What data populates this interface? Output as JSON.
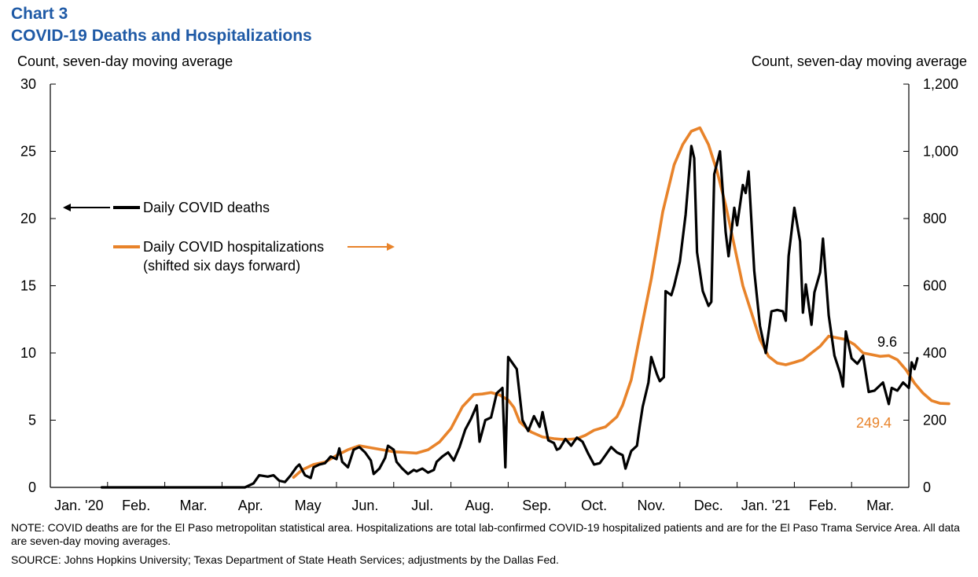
{
  "header": {
    "chart_number": "Chart 3",
    "title": "COVID-19 Deaths and Hospitalizations",
    "left_axis_label": "Count, seven-day moving average",
    "right_axis_label": "Count, seven-day moving average"
  },
  "footer": {
    "note": "NOTE:  COVID deaths are for the El Paso metropolitan  statistical area. Hospitalizations  are total lab-confirmed COVID-19 hospitalized patients and are for the El Paso Trama Service Area. All data are seven-day moving averages.",
    "source": "SOURCE:  Johns Hopkins University;  Texas  Department  of State Heath Services;  adjustments  by the Dallas Fed."
  },
  "colors": {
    "deaths": "#000000",
    "hospitalizations": "#e8832a"
  },
  "chart_data": {
    "type": "line",
    "x_ticks": [
      "Jan. '20",
      "Feb.",
      "Mar.",
      "Apr.",
      "May",
      "Jun.",
      "Jul.",
      "Aug.",
      "Sep.",
      "Oct.",
      "Nov.",
      "Dec.",
      "Jan. '21",
      "Feb.",
      "Mar."
    ],
    "y_left": {
      "ticks": [
        "0",
        "5",
        "10",
        "15",
        "20",
        "25",
        "30"
      ],
      "range": [
        0,
        30
      ]
    },
    "y_right": {
      "ticks": [
        "0",
        "200",
        "400",
        "600",
        "800",
        "1,000",
        "1,200"
      ],
      "range": [
        0,
        1200
      ]
    },
    "legend": {
      "deaths_label": "Daily COVID deaths",
      "hosp_label_line1": "Daily COVID hospitalizations",
      "hosp_label_line2": "(shifted six days forward)"
    },
    "annotations": {
      "deaths_last": "9.6",
      "hosp_last": "249.4"
    },
    "series": [
      {
        "name": "Daily COVID deaths",
        "axis": "left",
        "points": [
          [
            0.9,
            0
          ],
          [
            1.2,
            0
          ],
          [
            2,
            0
          ],
          [
            3,
            0
          ],
          [
            3.4,
            0
          ],
          [
            3.55,
            0.3
          ],
          [
            3.65,
            0.9
          ],
          [
            3.8,
            0.8
          ],
          [
            3.9,
            0.9
          ],
          [
            4.0,
            0.5
          ],
          [
            4.1,
            0.4
          ],
          [
            4.2,
            0.9
          ],
          [
            4.3,
            1.5
          ],
          [
            4.35,
            1.7
          ],
          [
            4.45,
            0.9
          ],
          [
            4.55,
            0.7
          ],
          [
            4.6,
            1.5
          ],
          [
            4.7,
            1.7
          ],
          [
            4.8,
            1.8
          ],
          [
            4.9,
            2.3
          ],
          [
            5.0,
            2.1
          ],
          [
            5.05,
            2.9
          ],
          [
            5.1,
            1.9
          ],
          [
            5.2,
            1.5
          ],
          [
            5.3,
            2.8
          ],
          [
            5.4,
            3.0
          ],
          [
            5.5,
            2.6
          ],
          [
            5.6,
            2.0
          ],
          [
            5.65,
            1.0
          ],
          [
            5.75,
            1.4
          ],
          [
            5.85,
            2.2
          ],
          [
            5.9,
            3.1
          ],
          [
            6.0,
            2.8
          ],
          [
            6.05,
            1.9
          ],
          [
            6.15,
            1.4
          ],
          [
            6.25,
            1.0
          ],
          [
            6.35,
            1.3
          ],
          [
            6.4,
            1.2
          ],
          [
            6.5,
            1.4
          ],
          [
            6.6,
            1.1
          ],
          [
            6.7,
            1.3
          ],
          [
            6.75,
            1.9
          ],
          [
            6.85,
            2.3
          ],
          [
            6.95,
            2.6
          ],
          [
            7.05,
            2.0
          ],
          [
            7.15,
            3.0
          ],
          [
            7.25,
            4.3
          ],
          [
            7.35,
            5.1
          ],
          [
            7.45,
            6.1
          ],
          [
            7.5,
            3.4
          ],
          [
            7.6,
            5.0
          ],
          [
            7.7,
            5.2
          ],
          [
            7.8,
            7.0
          ],
          [
            7.9,
            7.4
          ],
          [
            7.95,
            1.5
          ],
          [
            8.0,
            9.7
          ],
          [
            8.1,
            9.1
          ],
          [
            8.15,
            8.8
          ],
          [
            8.25,
            5.0
          ],
          [
            8.35,
            4.2
          ],
          [
            8.45,
            5.3
          ],
          [
            8.55,
            4.5
          ],
          [
            8.6,
            5.6
          ],
          [
            8.7,
            3.5
          ],
          [
            8.8,
            3.3
          ],
          [
            8.85,
            2.8
          ],
          [
            8.9,
            2.9
          ],
          [
            9.0,
            3.6
          ],
          [
            9.1,
            3.1
          ],
          [
            9.2,
            3.7
          ],
          [
            9.3,
            3.4
          ],
          [
            9.4,
            2.5
          ],
          [
            9.5,
            1.7
          ],
          [
            9.6,
            1.8
          ],
          [
            9.7,
            2.4
          ],
          [
            9.8,
            3.0
          ],
          [
            9.9,
            2.6
          ],
          [
            10.0,
            2.4
          ],
          [
            10.05,
            1.4
          ],
          [
            10.15,
            2.7
          ],
          [
            10.25,
            3.1
          ],
          [
            10.3,
            4.6
          ],
          [
            10.35,
            6.0
          ],
          [
            10.45,
            7.8
          ],
          [
            10.5,
            9.7
          ],
          [
            10.6,
            8.4
          ],
          [
            10.65,
            7.9
          ],
          [
            10.72,
            8.2
          ],
          [
            10.75,
            14.6
          ],
          [
            10.85,
            14.3
          ],
          [
            10.9,
            15.0
          ],
          [
            11.0,
            16.8
          ],
          [
            11.1,
            20.3
          ],
          [
            11.2,
            25.4
          ],
          [
            11.25,
            24.5
          ],
          [
            11.3,
            17.5
          ],
          [
            11.4,
            14.6
          ],
          [
            11.5,
            13.5
          ],
          [
            11.55,
            13.8
          ],
          [
            11.6,
            23.3
          ],
          [
            11.7,
            25.0
          ],
          [
            11.8,
            19.0
          ],
          [
            11.85,
            17.2
          ],
          [
            11.95,
            20.8
          ],
          [
            12.0,
            19.5
          ],
          [
            12.1,
            22.5
          ],
          [
            12.15,
            21.9
          ],
          [
            12.2,
            23.5
          ],
          [
            12.3,
            16.1
          ],
          [
            12.4,
            12.0
          ],
          [
            12.5,
            10.0
          ],
          [
            12.6,
            13.1
          ],
          [
            12.7,
            13.2
          ],
          [
            12.8,
            13.1
          ],
          [
            12.85,
            12.4
          ],
          [
            12.9,
            17.2
          ],
          [
            13.0,
            20.8
          ],
          [
            13.1,
            18.3
          ],
          [
            13.15,
            13.0
          ],
          [
            13.2,
            15.1
          ],
          [
            13.3,
            12.1
          ],
          [
            13.35,
            14.5
          ],
          [
            13.45,
            16.0
          ],
          [
            13.5,
            18.5
          ],
          [
            13.6,
            12.8
          ],
          [
            13.7,
            9.8
          ],
          [
            13.8,
            8.5
          ],
          [
            13.85,
            7.5
          ],
          [
            13.9,
            11.6
          ],
          [
            14.0,
            9.6
          ],
          [
            14.1,
            9.2
          ],
          [
            14.2,
            9.8
          ],
          [
            14.3,
            7.1
          ],
          [
            14.4,
            7.2
          ],
          [
            14.5,
            7.6
          ],
          [
            14.55,
            7.8
          ],
          [
            14.65,
            6.2
          ],
          [
            14.7,
            7.4
          ],
          [
            14.8,
            7.2
          ],
          [
            14.9,
            7.8
          ],
          [
            15.0,
            7.4
          ],
          [
            15.05,
            9.3
          ],
          [
            15.1,
            8.8
          ],
          [
            15.15,
            9.6
          ]
        ]
      },
      {
        "name": "Daily COVID hospitalizations (shifted six days forward)",
        "axis": "right",
        "points": [
          [
            4.25,
            30
          ],
          [
            4.4,
            52
          ],
          [
            4.6,
            68
          ],
          [
            4.8,
            75
          ],
          [
            5.0,
            95
          ],
          [
            5.2,
            112
          ],
          [
            5.4,
            124
          ],
          [
            5.6,
            118
          ],
          [
            5.8,
            112
          ],
          [
            6.0,
            106
          ],
          [
            6.2,
            104
          ],
          [
            6.4,
            102
          ],
          [
            6.6,
            112
          ],
          [
            6.8,
            135
          ],
          [
            7.0,
            175
          ],
          [
            7.2,
            240
          ],
          [
            7.4,
            276
          ],
          [
            7.55,
            278
          ],
          [
            7.7,
            282
          ],
          [
            7.85,
            275
          ],
          [
            8.0,
            260
          ],
          [
            8.1,
            238
          ],
          [
            8.2,
            195
          ],
          [
            8.4,
            165
          ],
          [
            8.6,
            150
          ],
          [
            8.8,
            145
          ],
          [
            9.0,
            142
          ],
          [
            9.2,
            145
          ],
          [
            9.35,
            155
          ],
          [
            9.5,
            170
          ],
          [
            9.7,
            180
          ],
          [
            9.9,
            210
          ],
          [
            10.0,
            245
          ],
          [
            10.15,
            320
          ],
          [
            10.3,
            450
          ],
          [
            10.5,
            620
          ],
          [
            10.7,
            820
          ],
          [
            10.9,
            960
          ],
          [
            11.05,
            1020
          ],
          [
            11.2,
            1060
          ],
          [
            11.35,
            1070
          ],
          [
            11.5,
            1020
          ],
          [
            11.65,
            940
          ],
          [
            11.8,
            840
          ],
          [
            11.95,
            720
          ],
          [
            12.1,
            600
          ],
          [
            12.25,
            520
          ],
          [
            12.4,
            440
          ],
          [
            12.55,
            390
          ],
          [
            12.7,
            370
          ],
          [
            12.85,
            365
          ],
          [
            13.0,
            372
          ],
          [
            13.15,
            380
          ],
          [
            13.3,
            400
          ],
          [
            13.45,
            420
          ],
          [
            13.6,
            450
          ],
          [
            13.75,
            445
          ],
          [
            13.9,
            440
          ],
          [
            14.05,
            425
          ],
          [
            14.2,
            400
          ],
          [
            14.35,
            395
          ],
          [
            14.5,
            390
          ],
          [
            14.65,
            392
          ],
          [
            14.8,
            380
          ],
          [
            14.95,
            350
          ],
          [
            15.1,
            310
          ],
          [
            15.25,
            280
          ],
          [
            15.4,
            258
          ],
          [
            15.55,
            250
          ],
          [
            15.7,
            249
          ]
        ]
      }
    ]
  }
}
